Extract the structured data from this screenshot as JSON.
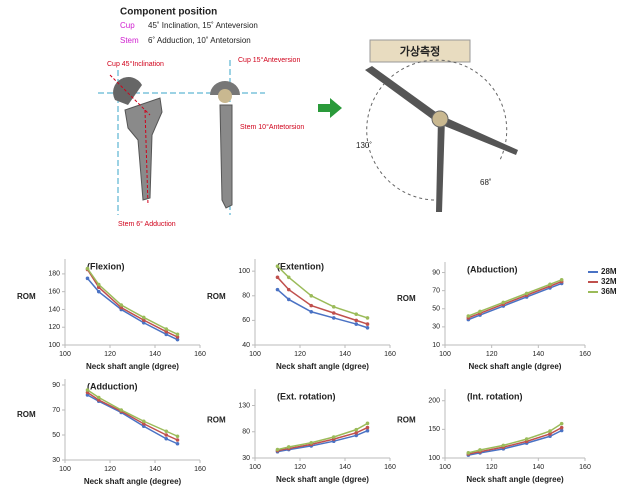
{
  "diagram": {
    "heading": "Component position",
    "cup_label": "Cup",
    "cup_position": "45˚  Inclination, 15˚  Anteversion",
    "stem_label": "Stem",
    "stem_position": "6˚  Adduction, 10˚  Antetorsion",
    "cup_inclination": "Cup  45°Inclination",
    "cup_anteversion": "Cup  15°Anteversion",
    "stem_antetorsion": "Stem  10°Antetorsion",
    "stem_adduction": "Stem  6°  Adduction",
    "button": "가상측정",
    "angle_1": "130˚",
    "angle_2": "68˚"
  },
  "chart_data": [
    {
      "type": "line",
      "title": "(Flexion)",
      "ylabel": "ROM",
      "xlabel": "Neck shaft angle (dgree)",
      "x": [
        110,
        115,
        125,
        135,
        145,
        150
      ],
      "xlim": [
        100,
        160
      ],
      "xticks": [
        100,
        120,
        140,
        160
      ],
      "ylim": [
        100,
        190
      ],
      "yticks": [
        100,
        120,
        140,
        160,
        180
      ],
      "series": [
        {
          "color": "#4a72c4",
          "values": [
            175,
            160,
            140,
            125,
            112,
            106
          ]
        },
        {
          "color": "#c0504d",
          "values": [
            185,
            165,
            142,
            128,
            115,
            109
          ]
        },
        {
          "color": "#9bbb59",
          "values": [
            186,
            168,
            145,
            131,
            118,
            112
          ]
        }
      ]
    },
    {
      "type": "line",
      "title": "(Extention)",
      "ylabel": "ROM",
      "xlabel": "Neck shaft angle (dgree)",
      "x": [
        110,
        115,
        125,
        135,
        145,
        150
      ],
      "xlim": [
        100,
        160
      ],
      "xticks": [
        100,
        120,
        140,
        160
      ],
      "ylim": [
        40,
        105
      ],
      "yticks": [
        40,
        60,
        80,
        100
      ],
      "series": [
        {
          "color": "#4a72c4",
          "values": [
            85,
            77,
            67,
            62,
            57,
            54
          ]
        },
        {
          "color": "#c0504d",
          "values": [
            95,
            85,
            72,
            66,
            60,
            57
          ]
        },
        {
          "color": "#9bbb59",
          "values": [
            104,
            95,
            80,
            71,
            65,
            62
          ]
        }
      ]
    },
    {
      "type": "line",
      "title": "(Abduction)",
      "ylabel": "ROM",
      "xlabel": "Neck shaft angle (dgree)",
      "x": [
        110,
        115,
        125,
        135,
        145,
        150
      ],
      "xlim": [
        100,
        160
      ],
      "xticks": [
        100,
        120,
        140,
        160
      ],
      "ylim": [
        10,
        95
      ],
      "yticks": [
        10,
        30,
        50,
        70,
        90
      ],
      "series": [
        {
          "name": "28M",
          "color": "#4a72c4",
          "values": [
            38,
            43,
            53,
            63,
            73,
            78
          ]
        },
        {
          "name": "32M",
          "color": "#c0504d",
          "values": [
            40,
            45,
            55,
            65,
            75,
            80
          ]
        },
        {
          "name": "36M",
          "color": "#9bbb59",
          "values": [
            42,
            47,
            57,
            67,
            77,
            82
          ]
        }
      ]
    },
    {
      "type": "line",
      "title": "(Adduction)",
      "ylabel": "ROM",
      "xlabel": "Neck shaft angle (degree)",
      "x": [
        110,
        115,
        125,
        135,
        145,
        150
      ],
      "xlim": [
        100,
        160
      ],
      "xticks": [
        100,
        120,
        140,
        160
      ],
      "ylim": [
        30,
        90
      ],
      "yticks": [
        30,
        50,
        70,
        90
      ],
      "series": [
        {
          "color": "#4a72c4",
          "values": [
            82,
            77,
            68,
            57,
            47,
            43
          ]
        },
        {
          "color": "#c0504d",
          "values": [
            84,
            78,
            69,
            59,
            50,
            46
          ]
        },
        {
          "color": "#9bbb59",
          "values": [
            86,
            80,
            70,
            61,
            53,
            49
          ]
        }
      ]
    },
    {
      "type": "line",
      "title": "(Ext. rotation)",
      "ylabel": "ROM",
      "xlabel": "Neck shaft angle (dgree)",
      "x": [
        110,
        115,
        125,
        135,
        145,
        150
      ],
      "xlim": [
        100,
        160
      ],
      "xticks": [
        100,
        120,
        140,
        160
      ],
      "ylim": [
        30,
        150
      ],
      "yticks": [
        30,
        80,
        130
      ],
      "series": [
        {
          "color": "#4a72c4",
          "values": [
            42,
            46,
            53,
            62,
            73,
            82
          ]
        },
        {
          "color": "#c0504d",
          "values": [
            44,
            48,
            56,
            66,
            78,
            88
          ]
        },
        {
          "color": "#9bbb59",
          "values": [
            46,
            51,
            59,
            70,
            84,
            96
          ]
        }
      ]
    },
    {
      "type": "line",
      "title": "(Int. rotation)",
      "ylabel": "ROM",
      "xlabel": "Neck shaft angle (degree)",
      "x": [
        110,
        115,
        125,
        135,
        145,
        150
      ],
      "xlim": [
        100,
        160
      ],
      "xticks": [
        100,
        120,
        140,
        160
      ],
      "ylim": [
        100,
        210
      ],
      "yticks": [
        100,
        150,
        200
      ],
      "series": [
        {
          "color": "#4a72c4",
          "values": [
            105,
            109,
            116,
            126,
            138,
            148
          ]
        },
        {
          "color": "#c0504d",
          "values": [
            107,
            111,
            119,
            129,
            142,
            153
          ]
        },
        {
          "color": "#9bbb59",
          "values": [
            109,
            114,
            122,
            133,
            147,
            160
          ]
        }
      ]
    }
  ]
}
